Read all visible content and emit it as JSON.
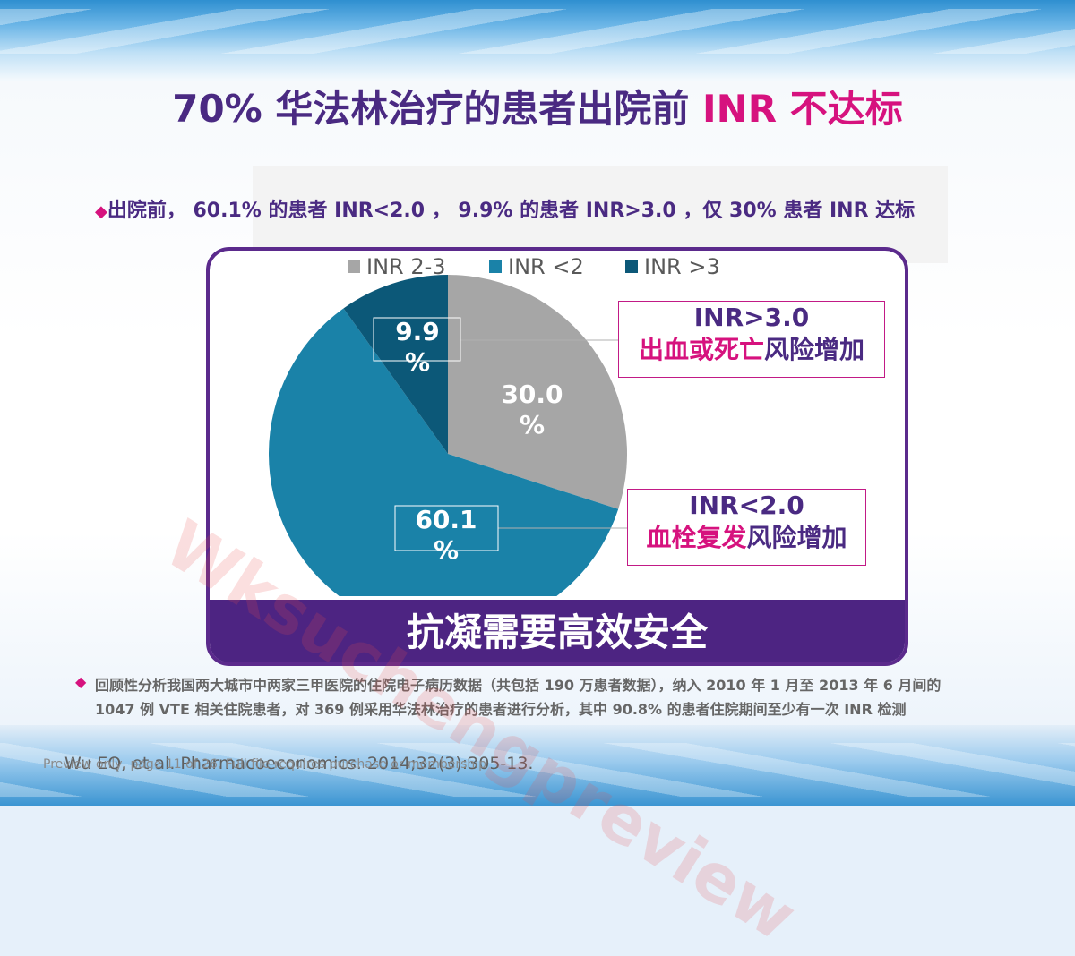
{
  "slide": {
    "title_main": "70% 华法林治疗的患者出院前",
    "title_highlight": "INR 不达标",
    "bullet_top": "出院前， 60.1% 的患者 INR<2.0 ， 9.9% 的患者 INR>3.0 ，仅 30% 患者 INR 达标",
    "bullet_marker": "◆",
    "band_text": "抗凝需要高效安全",
    "callout_high": {
      "line1": "INR>3.0",
      "pink": "出血或死亡",
      "rest": "风险增加"
    },
    "callout_low": {
      "line1": "INR<2.0",
      "pink": "血栓复发",
      "rest": "风险增加"
    },
    "footnote": "回顾性分析我国两大城市中两家三甲医院的住院电子病历数据（共包括 190 万患者数据），纳入 2010 年 1 月至 2013 年 6 月间的 1047 例 VTE 相关住院患者，对 369 例采用华法林治疗的患者进行分析，其中 90.8% 的患者住院期间至少有一次 INR 检测",
    "reference": "Wu EQ, et al. Pharmacoeconomics. 2014;32(3):305-13.",
    "preview_note": "Preview only, page 11 of 26, Full file requires purchase or membership",
    "watermark": "Wksuchengpreview"
  },
  "chart_data": {
    "type": "pie",
    "title": "",
    "legend_position": "top",
    "categories": [
      "INR 2-3",
      "INR <2",
      "INR >3"
    ],
    "values": [
      30.0,
      60.1,
      9.9
    ],
    "labels": [
      "30.0\n%",
      "60.1\n%",
      "9.9\n%"
    ],
    "colors": [
      "#a6a6a6",
      "#1a82a8",
      "#0c5878"
    ]
  }
}
